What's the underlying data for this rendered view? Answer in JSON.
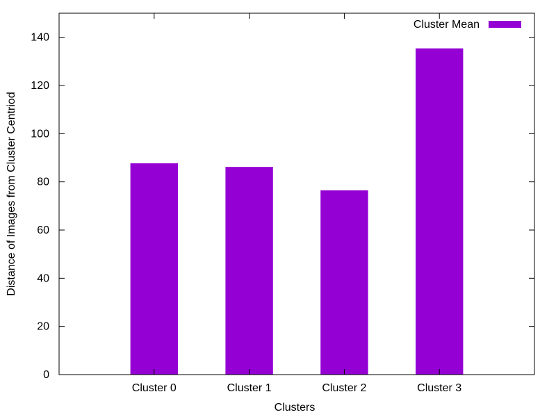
{
  "chart_data": {
    "type": "bar",
    "categories": [
      "Cluster 0",
      "Cluster 1",
      "Cluster 2",
      "Cluster 3"
    ],
    "series": [
      {
        "name": "Cluster Mean",
        "values": [
          87.7,
          86.2,
          76.5,
          135.4
        ],
        "color": "#9400d3"
      }
    ],
    "xlabel": "Clusters",
    "ylabel": "Distance of Images from Cluster Centriod",
    "ylim": [
      0,
      150
    ],
    "yticks": [
      0,
      20,
      40,
      60,
      80,
      100,
      120,
      140
    ],
    "grid": false,
    "legend_position": "top-right"
  }
}
